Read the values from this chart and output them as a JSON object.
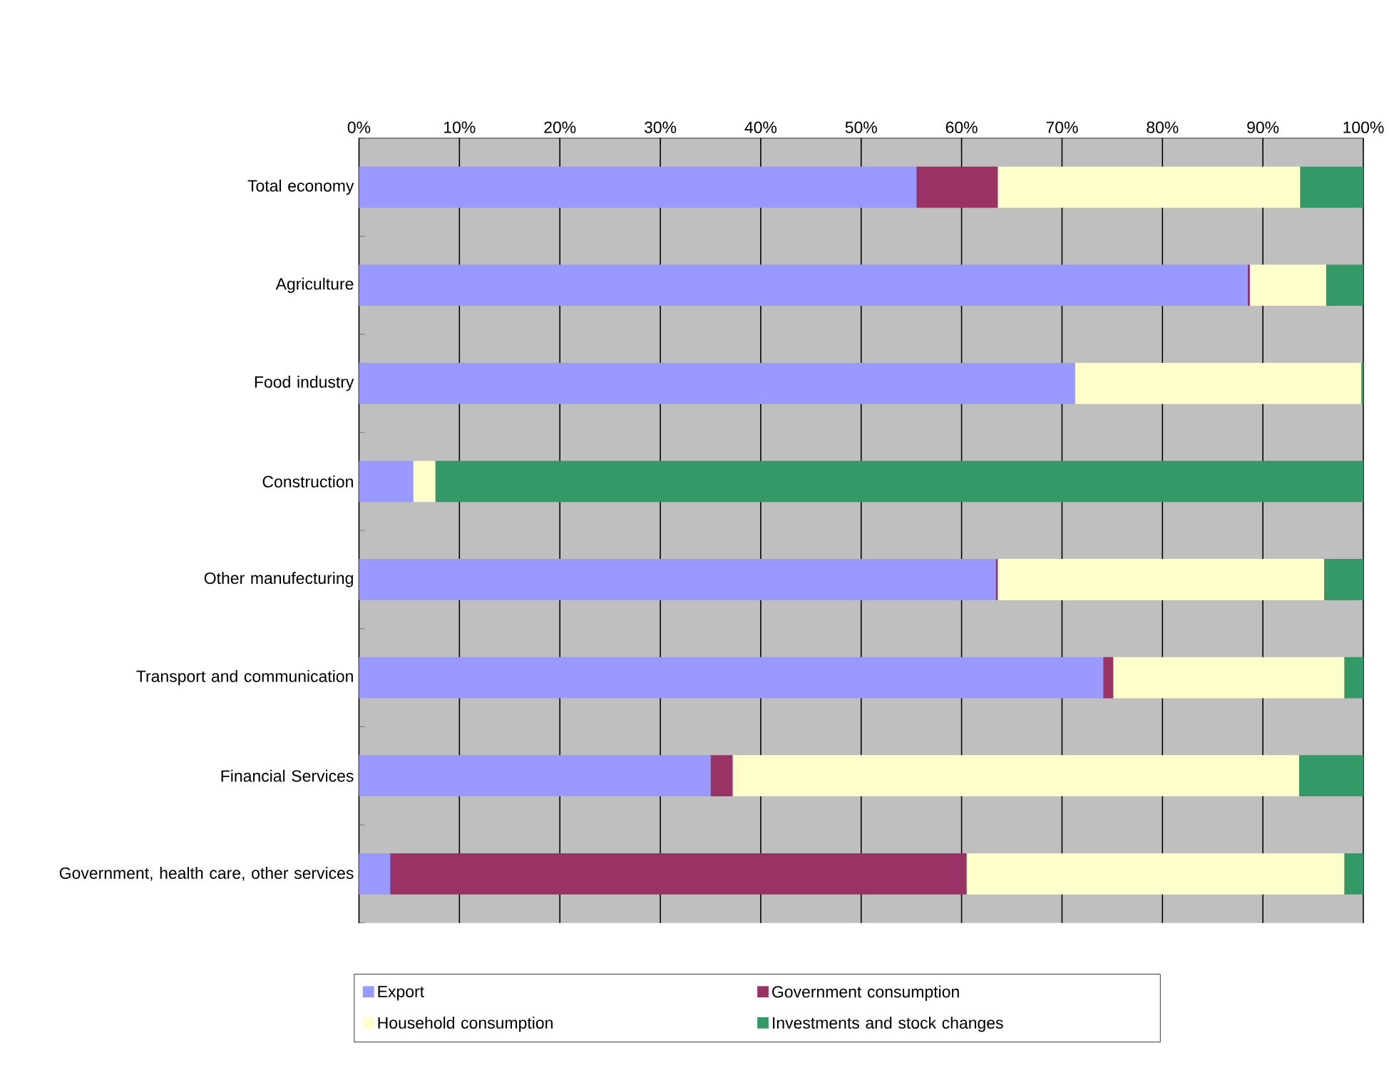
{
  "chart_data": {
    "type": "bar",
    "orientation": "horizontal",
    "stacked": true,
    "grid": "x",
    "legend": "bottom",
    "categories": [
      "Total economy",
      "Agriculture",
      "Food industry",
      "Construction",
      "Other manufecturing",
      "Transport and communication",
      "Financial Services",
      "Government, health care, other services"
    ],
    "xlim": [
      0,
      100
    ],
    "xticks": [
      {
        "value": 0,
        "label": "0%"
      },
      {
        "value": 10,
        "label": "10%"
      },
      {
        "value": 20,
        "label": "20%"
      },
      {
        "value": 30,
        "label": "30%"
      },
      {
        "value": 40,
        "label": "40%"
      },
      {
        "value": 50,
        "label": "50%"
      },
      {
        "value": 60,
        "label": "60%"
      },
      {
        "value": 70,
        "label": "70%"
      },
      {
        "value": 80,
        "label": "80%"
      },
      {
        "value": 90,
        "label": "90%"
      },
      {
        "value": 100,
        "label": "100%"
      }
    ],
    "series": [
      {
        "name": "Export",
        "color": "#9999ff",
        "values": [
          55.5,
          88.5,
          71.3,
          5.4,
          63.4,
          74.1,
          35.0,
          3.1
        ]
      },
      {
        "name": "Government consumption",
        "color": "#993366",
        "values": [
          8.1,
          0.2,
          0,
          0,
          0.2,
          1.0,
          2.2,
          57.4
        ]
      },
      {
        "name": "Household consumption",
        "color": "#ffffcc",
        "values": [
          30.1,
          7.6,
          28.5,
          2.2,
          32.5,
          23.0,
          56.4,
          37.6
        ]
      },
      {
        "name": "Investments and stock changes",
        "color": "#339966",
        "values": [
          6.3,
          3.7,
          0.2,
          92.4,
          3.9,
          1.9,
          6.4,
          1.9
        ]
      }
    ]
  }
}
